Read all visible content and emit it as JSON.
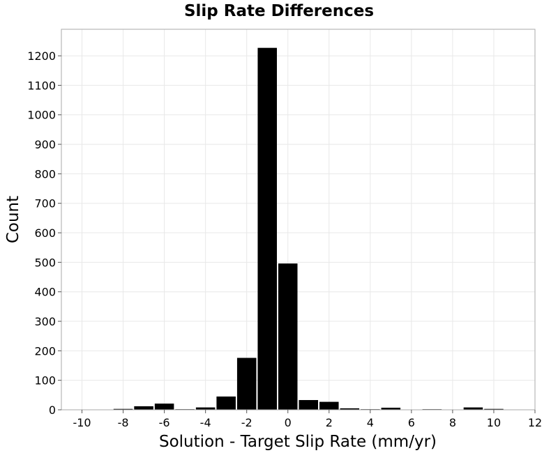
{
  "chart_data": {
    "type": "bar",
    "title": "Slip Rate Differences",
    "xlabel": "Solution - Target Slip Rate (mm/yr)",
    "ylabel": "Count",
    "xlim": [
      -11,
      12
    ],
    "ylim": [
      0,
      1290
    ],
    "xticks": [
      -10,
      -8,
      -6,
      -4,
      -2,
      0,
      2,
      4,
      6,
      8,
      10,
      12
    ],
    "yticks": [
      0,
      100,
      200,
      300,
      400,
      500,
      600,
      700,
      800,
      900,
      1000,
      1100,
      1200
    ],
    "grid": true,
    "bin_width": 1,
    "bins": [
      {
        "x": -10,
        "value": 0
      },
      {
        "x": -9,
        "value": 0
      },
      {
        "x": -8,
        "value": 3
      },
      {
        "x": -7,
        "value": 12
      },
      {
        "x": -6,
        "value": 21
      },
      {
        "x": -5,
        "value": 2
      },
      {
        "x": -4,
        "value": 8
      },
      {
        "x": -3,
        "value": 45
      },
      {
        "x": -2,
        "value": 176
      },
      {
        "x": -1,
        "value": 1227
      },
      {
        "x": 0,
        "value": 496
      },
      {
        "x": 1,
        "value": 33
      },
      {
        "x": 2,
        "value": 27
      },
      {
        "x": 3,
        "value": 5
      },
      {
        "x": 4,
        "value": 2
      },
      {
        "x": 5,
        "value": 7
      },
      {
        "x": 6,
        "value": 1
      },
      {
        "x": 7,
        "value": 2
      },
      {
        "x": 8,
        "value": 1
      },
      {
        "x": 9,
        "value": 8
      },
      {
        "x": 10,
        "value": 3
      }
    ],
    "bar_color": "#000000"
  }
}
